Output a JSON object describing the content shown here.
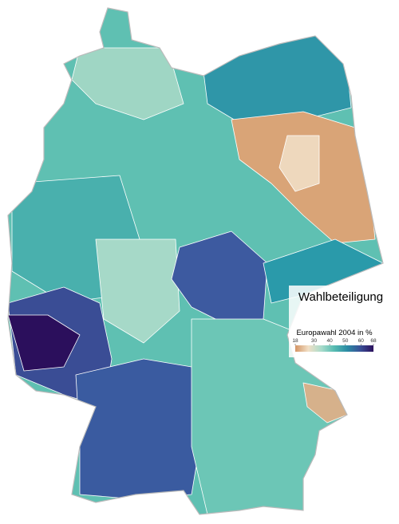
{
  "legend": {
    "title": "Wahlbeteiligung",
    "subtitle": "Europawahl 2004 in %",
    "range": [
      18,
      68
    ],
    "ticks": [
      18,
      30,
      40,
      50,
      60,
      68
    ],
    "colors": [
      "#d39464",
      "#f1dfc6",
      "#a9dccb",
      "#56bbb1",
      "#2b8ba4",
      "#3a4f97",
      "#2b0f5c"
    ]
  }
}
